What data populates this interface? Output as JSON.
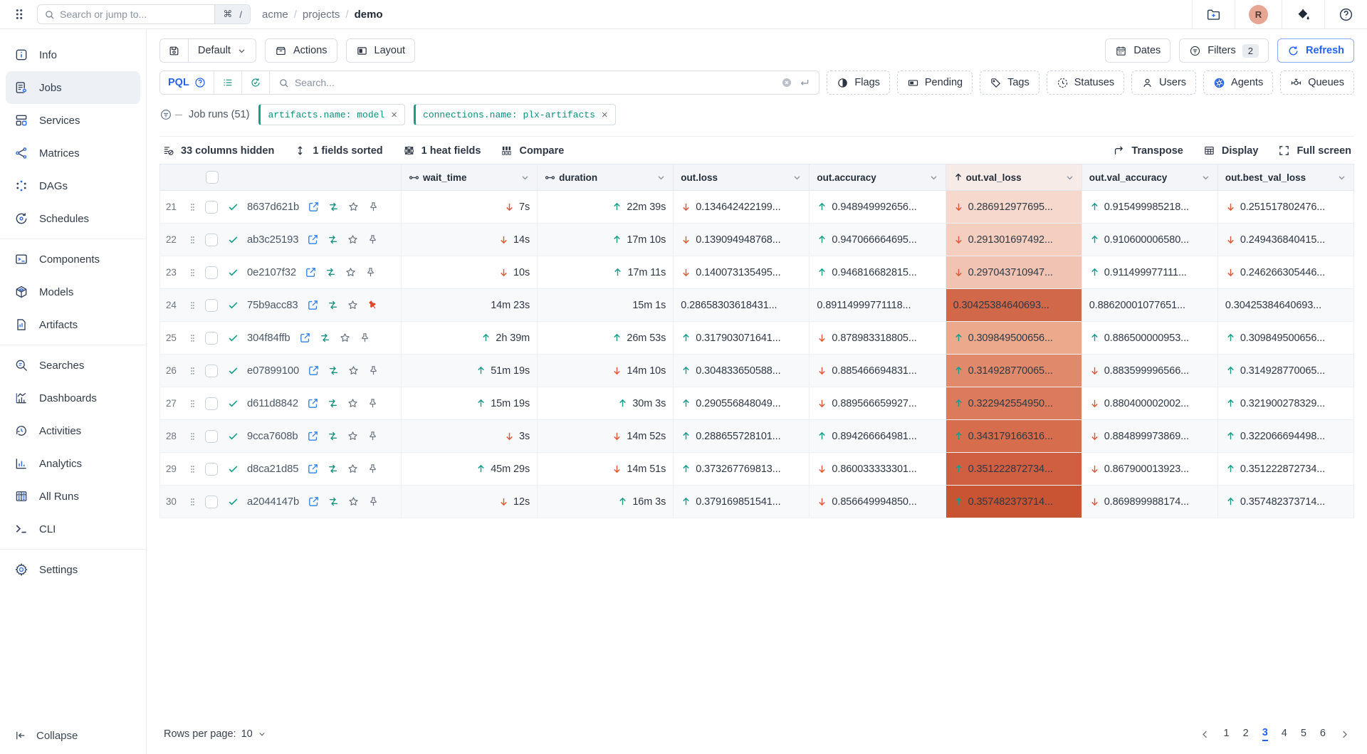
{
  "topbar": {
    "search_placeholder": "Search or jump to...",
    "shortcut_keys": [
      "⌘",
      "/"
    ],
    "breadcrumb": [
      "acme",
      "projects",
      "demo"
    ],
    "avatar_initial": "R"
  },
  "sidebar": {
    "groups": [
      {
        "items": [
          {
            "label": "Info",
            "icon": "info"
          },
          {
            "label": "Jobs",
            "icon": "jobs",
            "active": true
          },
          {
            "label": "Services",
            "icon": "services"
          },
          {
            "label": "Matrices",
            "icon": "matrices"
          },
          {
            "label": "DAGs",
            "icon": "dags"
          },
          {
            "label": "Schedules",
            "icon": "schedules"
          }
        ]
      },
      {
        "items": [
          {
            "label": "Components",
            "icon": "components"
          },
          {
            "label": "Models",
            "icon": "models"
          },
          {
            "label": "Artifacts",
            "icon": "artifacts"
          }
        ]
      },
      {
        "items": [
          {
            "label": "Searches",
            "icon": "searches"
          },
          {
            "label": "Dashboards",
            "icon": "dashboards"
          },
          {
            "label": "Activities",
            "icon": "activities"
          },
          {
            "label": "Analytics",
            "icon": "analytics"
          },
          {
            "label": "All Runs",
            "icon": "all-runs"
          },
          {
            "label": "CLI",
            "icon": "cli"
          }
        ]
      },
      {
        "items": [
          {
            "label": "Settings",
            "icon": "settings"
          }
        ]
      }
    ],
    "collapse_label": "Collapse"
  },
  "toolbar": {
    "preset_label": "Default",
    "actions_label": "Actions",
    "layout_label": "Layout",
    "dates_label": "Dates",
    "filters_label": "Filters",
    "filters_count": "2",
    "refresh_label": "Refresh"
  },
  "search_row": {
    "pql_label": "PQL",
    "search_placeholder": "Search...",
    "filter_buttons": [
      {
        "label": "Flags",
        "icon": "flag"
      },
      {
        "label": "Pending",
        "icon": "pending"
      },
      {
        "label": "Tags",
        "icon": "tag"
      },
      {
        "label": "Statuses",
        "icon": "status-clock"
      },
      {
        "label": "Users",
        "icon": "user"
      },
      {
        "label": "Agents",
        "icon": "kubernetes"
      },
      {
        "label": "Queues",
        "icon": "queues"
      }
    ]
  },
  "filter_row": {
    "label": "Job runs (51)",
    "chips": [
      "artifacts.name: model",
      "connections.name: plx-artifacts"
    ]
  },
  "table_controls": {
    "left": [
      {
        "label": "33 columns hidden",
        "icon": "columns-hidden"
      },
      {
        "label": "1 fields sorted",
        "icon": "sort"
      },
      {
        "label": "1 heat fields",
        "icon": "heat"
      },
      {
        "label": "Compare",
        "icon": "compare"
      }
    ],
    "right": [
      {
        "label": "Transpose",
        "icon": "transpose"
      },
      {
        "label": "Display",
        "icon": "display"
      },
      {
        "label": "Full screen",
        "icon": "fullscreen"
      }
    ]
  },
  "table": {
    "columns": [
      {
        "key": "wait_time",
        "label": "wait_time",
        "linked": true,
        "align": "right"
      },
      {
        "key": "duration",
        "label": "duration",
        "linked": true,
        "align": "right"
      },
      {
        "key": "out_loss",
        "label": "out.loss"
      },
      {
        "key": "out_accuracy",
        "label": "out.accuracy"
      },
      {
        "key": "out_val_loss",
        "label": "out.val_loss",
        "sorted": "asc",
        "heat": true
      },
      {
        "key": "out_val_accuracy",
        "label": "out.val_accuracy"
      },
      {
        "key": "out_best_val_loss",
        "label": "out.best_val_loss"
      }
    ],
    "rows": [
      {
        "num": "21",
        "id": "8637d621b",
        "status": "succeeded",
        "pinned": false,
        "cells": [
          {
            "dir": "down",
            "value": "7s"
          },
          {
            "dir": "up",
            "value": "22m 39s"
          },
          {
            "dir": "down",
            "value": "0.134642422199..."
          },
          {
            "dir": "up",
            "value": "0.948949992656..."
          },
          {
            "dir": "down",
            "value": "0.286912977695...",
            "heat": "#f7d8cc"
          },
          {
            "dir": "up",
            "value": "0.915499985218..."
          },
          {
            "dir": "down",
            "value": "0.251517802476..."
          }
        ]
      },
      {
        "num": "22",
        "id": "ab3c25193",
        "status": "succeeded",
        "pinned": false,
        "cells": [
          {
            "dir": "down",
            "value": "14s"
          },
          {
            "dir": "up",
            "value": "17m 10s"
          },
          {
            "dir": "down",
            "value": "0.139094948768..."
          },
          {
            "dir": "up",
            "value": "0.947066664695..."
          },
          {
            "dir": "down",
            "value": "0.291301697492...",
            "heat": "#f4cfc0"
          },
          {
            "dir": "up",
            "value": "0.910600006580..."
          },
          {
            "dir": "down",
            "value": "0.249436840415..."
          }
        ]
      },
      {
        "num": "23",
        "id": "0e2107f32",
        "status": "succeeded",
        "pinned": false,
        "cells": [
          {
            "dir": "down",
            "value": "10s"
          },
          {
            "dir": "up",
            "value": "17m 11s"
          },
          {
            "dir": "down",
            "value": "0.140073135495..."
          },
          {
            "dir": "up",
            "value": "0.946816682815..."
          },
          {
            "dir": "down",
            "value": "0.297043710947...",
            "heat": "#f1c3b2"
          },
          {
            "dir": "up",
            "value": "0.911499977111..."
          },
          {
            "dir": "down",
            "value": "0.246266305446..."
          }
        ]
      },
      {
        "num": "24",
        "id": "75b9acc83",
        "status": "succeeded",
        "pinned": true,
        "cells": [
          {
            "dir": null,
            "value": "14m 23s"
          },
          {
            "dir": null,
            "value": "15m 1s"
          },
          {
            "dir": null,
            "value": "0.28658303618431..."
          },
          {
            "dir": null,
            "value": "0.89114999771118..."
          },
          {
            "dir": null,
            "value": "0.30425384640693...",
            "heat": "#d2684a"
          },
          {
            "dir": null,
            "value": "0.88620001077651..."
          },
          {
            "dir": null,
            "value": "0.30425384640693..."
          }
        ]
      },
      {
        "num": "25",
        "id": "304f84ffb",
        "status": "succeeded",
        "pinned": false,
        "cells": [
          {
            "dir": "up",
            "value": "2h 39m"
          },
          {
            "dir": "up",
            "value": "26m 53s"
          },
          {
            "dir": "up",
            "value": "0.317903071641..."
          },
          {
            "dir": "down",
            "value": "0.878983318805..."
          },
          {
            "dir": "up",
            "value": "0.309849500656...",
            "heat": "#eca98c"
          },
          {
            "dir": "up",
            "value": "0.886500000953..."
          },
          {
            "dir": "up",
            "value": "0.309849500656..."
          }
        ]
      },
      {
        "num": "26",
        "id": "e07899100",
        "status": "succeeded",
        "pinned": false,
        "cells": [
          {
            "dir": "up",
            "value": "51m 19s"
          },
          {
            "dir": "down",
            "value": "14m 10s"
          },
          {
            "dir": "up",
            "value": "0.304833650588..."
          },
          {
            "dir": "down",
            "value": "0.885466694831..."
          },
          {
            "dir": "up",
            "value": "0.314928770065...",
            "heat": "#e18a6b"
          },
          {
            "dir": "down",
            "value": "0.883599996566..."
          },
          {
            "dir": "up",
            "value": "0.314928770065..."
          }
        ]
      },
      {
        "num": "27",
        "id": "d611d8842",
        "status": "succeeded",
        "pinned": false,
        "cells": [
          {
            "dir": "up",
            "value": "15m 19s"
          },
          {
            "dir": "up",
            "value": "30m 3s"
          },
          {
            "dir": "up",
            "value": "0.290556848049..."
          },
          {
            "dir": "down",
            "value": "0.889566659927..."
          },
          {
            "dir": "up",
            "value": "0.322942554950...",
            "heat": "#db7b5c"
          },
          {
            "dir": "down",
            "value": "0.880400002002..."
          },
          {
            "dir": "up",
            "value": "0.321900278329..."
          }
        ]
      },
      {
        "num": "28",
        "id": "9cca7608b",
        "status": "succeeded",
        "pinned": false,
        "cells": [
          {
            "dir": "down",
            "value": "3s"
          },
          {
            "dir": "down",
            "value": "14m 52s"
          },
          {
            "dir": "up",
            "value": "0.288655728101..."
          },
          {
            "dir": "up",
            "value": "0.894266664981..."
          },
          {
            "dir": "up",
            "value": "0.343179166316...",
            "heat": "#d66e4e"
          },
          {
            "dir": "down",
            "value": "0.884899973869..."
          },
          {
            "dir": "up",
            "value": "0.322066694498..."
          }
        ]
      },
      {
        "num": "29",
        "id": "d8ca21d85",
        "status": "succeeded",
        "pinned": false,
        "cells": [
          {
            "dir": "up",
            "value": "45m 29s"
          },
          {
            "dir": "down",
            "value": "14m 51s"
          },
          {
            "dir": "up",
            "value": "0.373267769813..."
          },
          {
            "dir": "down",
            "value": "0.860033333301..."
          },
          {
            "dir": "up",
            "value": "0.351222872734...",
            "heat": "#d05f41"
          },
          {
            "dir": "down",
            "value": "0.867900013923..."
          },
          {
            "dir": "up",
            "value": "0.351222872734..."
          }
        ]
      },
      {
        "num": "30",
        "id": "a2044147b",
        "status": "succeeded",
        "pinned": false,
        "cells": [
          {
            "dir": "down",
            "value": "12s"
          },
          {
            "dir": "up",
            "value": "16m 3s"
          },
          {
            "dir": "up",
            "value": "0.379169851541..."
          },
          {
            "dir": "down",
            "value": "0.856649994850..."
          },
          {
            "dir": "up",
            "value": "0.357482373714...",
            "heat": "#c85434"
          },
          {
            "dir": "down",
            "value": "0.869899988174..."
          },
          {
            "dir": "up",
            "value": "0.357482373714..."
          }
        ]
      }
    ]
  },
  "pagination": {
    "rows_per_page_label": "Rows per page:",
    "rows_per_page": "10",
    "pages": [
      "1",
      "2",
      "3",
      "4",
      "5",
      "6"
    ],
    "active_page": "3"
  },
  "colors": {
    "accent_blue": "#2563eb",
    "teal": "#16a08c",
    "red": "#df5a3c",
    "pin_red": "#e2462b",
    "kubernetes_blue": "#326ce5",
    "avatar_bg": "#e7a594"
  }
}
